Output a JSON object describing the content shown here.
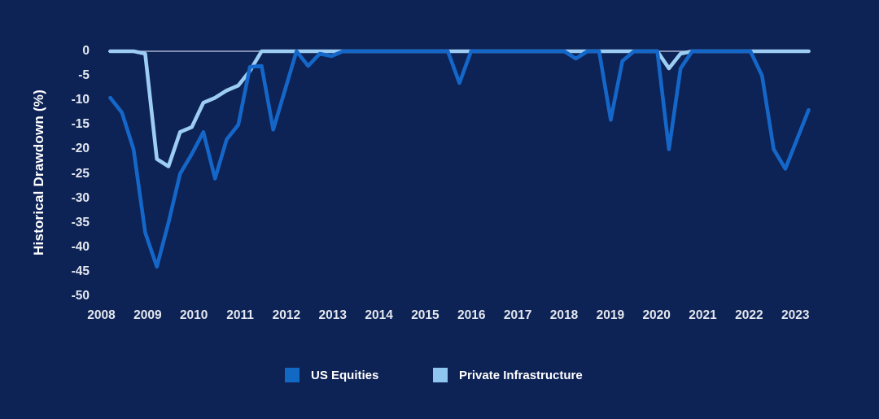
{
  "page": {
    "background": "#0d2255"
  },
  "chart_data": {
    "type": "line",
    "title": "",
    "ylabel": "Historical Drawdown (%)",
    "xlabel": "",
    "ylim": [
      -50,
      0
    ],
    "grid": "off",
    "zero_line_color": "#b6c2dc",
    "x_unit": "quarterly",
    "x_start": "2008Q1",
    "x_end": "2023Q1",
    "x_tick_labels": [
      "2008",
      "2009",
      "2010",
      "2011",
      "2012",
      "2013",
      "2014",
      "2015",
      "2016",
      "2017",
      "2018",
      "2019",
      "2020",
      "2021",
      "2022",
      "2023"
    ],
    "y_tick_labels": [
      "0",
      "-5",
      "-10",
      "-15",
      "-20",
      "-25",
      "-30",
      "-35",
      "-40",
      "-45",
      "-50"
    ],
    "y_tick_values": [
      0,
      -5,
      -10,
      -15,
      -20,
      -25,
      -30,
      -35,
      -40,
      -45,
      -50
    ],
    "series": [
      {
        "name": "Private Infrastructure",
        "color": "#9dcdf3",
        "values": [
          0,
          0,
          0,
          -0.5,
          -22,
          -23.5,
          -16.5,
          -15.5,
          -10.5,
          -9.5,
          -8,
          -7,
          -4,
          0,
          0,
          0,
          0,
          0,
          0,
          0,
          0,
          0,
          0,
          0,
          0,
          0,
          0,
          0,
          0,
          0,
          0,
          0,
          0,
          0,
          0,
          0,
          0,
          0,
          0,
          0,
          0,
          0,
          0,
          0,
          0,
          0,
          0,
          0,
          -3.5,
          -0.5,
          0,
          0,
          0,
          0,
          0,
          0,
          0,
          0,
          0,
          0,
          0
        ]
      },
      {
        "name": "US Equities",
        "color": "#1467c8",
        "values": [
          -9.5,
          -12.5,
          -20,
          -37,
          -44,
          -35,
          -25,
          -21,
          -16.5,
          -26,
          -18,
          -15,
          -3.2,
          -3,
          -16,
          -8,
          0,
          -3,
          -0.5,
          -1,
          0,
          0,
          0,
          0,
          0,
          0,
          0,
          0,
          0,
          0,
          -6.5,
          0,
          0,
          0,
          0,
          0,
          0,
          0,
          0,
          0,
          -1.5,
          0,
          0,
          -14,
          -2,
          0,
          0,
          0,
          -20,
          -3.5,
          0,
          0,
          0,
          0,
          0,
          0,
          -5,
          -20,
          -24,
          -18,
          -12
        ]
      }
    ],
    "legend": [
      {
        "label": "US Equities",
        "color": "#1169c4"
      },
      {
        "label": "Private Infrastructure",
        "color": "#8ec6f0"
      }
    ],
    "legend_position": "bottom"
  }
}
